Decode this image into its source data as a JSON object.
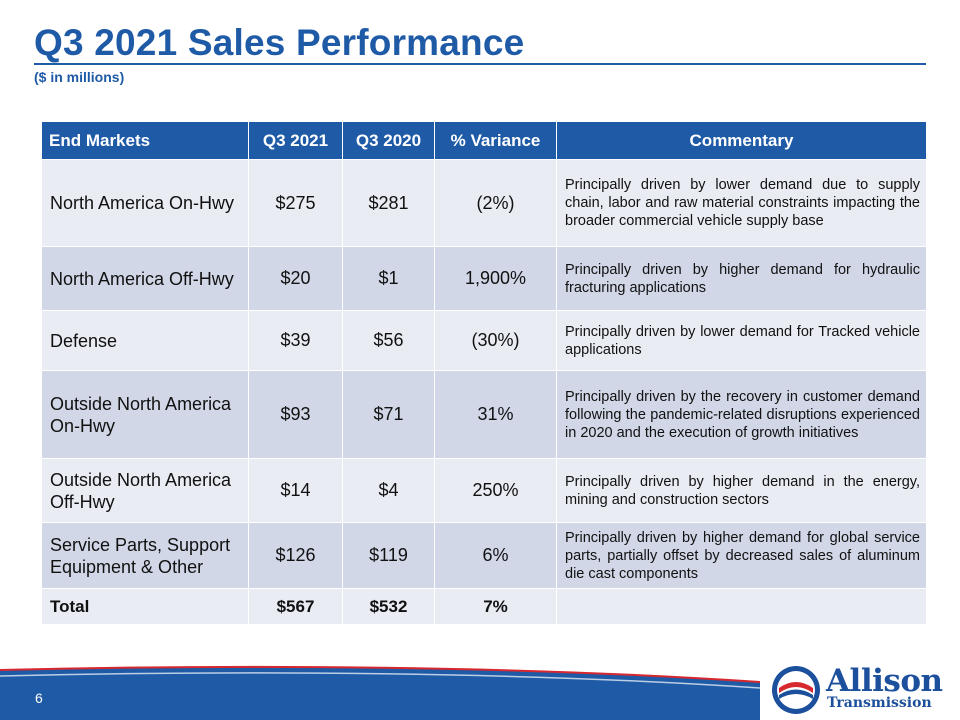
{
  "slide": {
    "title": "Q3 2021 Sales Performance",
    "subtitle": "($ in millions)",
    "page_number": "6"
  },
  "table": {
    "headers": [
      "End Markets",
      "Q3 2021",
      "Q3 2020",
      "% Variance",
      "Commentary"
    ],
    "rows": [
      {
        "market": "North America On-Hwy",
        "q3_2021": "$275",
        "q3_2020": "$281",
        "variance": "(2%)",
        "commentary": "Principally driven by lower demand due to supply chain, labor and raw material constraints impacting the broader commercial vehicle supply base"
      },
      {
        "market": "North America Off-Hwy",
        "q3_2021": "$20",
        "q3_2020": "$1",
        "variance": "1,900%",
        "commentary": "Principally driven by higher demand for hydraulic fracturing applications"
      },
      {
        "market": "Defense",
        "q3_2021": "$39",
        "q3_2020": "$56",
        "variance": "(30%)",
        "commentary": "Principally driven by lower demand for Tracked vehicle applications"
      },
      {
        "market": "Outside North America On-Hwy",
        "q3_2021": "$93",
        "q3_2020": "$71",
        "variance": "31%",
        "commentary": "Principally driven by the recovery in customer demand following the pandemic-related disruptions experienced in 2020 and the execution of growth initiatives"
      },
      {
        "market": "Outside North America Off-Hwy",
        "q3_2021": "$14",
        "q3_2020": "$4",
        "variance": "250%",
        "commentary": "Principally driven by higher demand in the energy, mining and construction sectors"
      },
      {
        "market": "Service Parts, Support Equipment & Other",
        "q3_2021": "$126",
        "q3_2020": "$119",
        "variance": "6%",
        "commentary": "Principally driven by higher demand for global service parts, partially offset by decreased sales of aluminum die cast components"
      }
    ],
    "total": {
      "market": "Total",
      "q3_2021": "$567",
      "q3_2020": "$532",
      "variance": "7%",
      "commentary": ""
    }
  },
  "logo": {
    "line1": "Allison",
    "line2": "Transmission",
    "colors": {
      "blue": "#1c4f9c",
      "red": "#d7282f"
    }
  },
  "colors": {
    "title_blue": "#1f5aa6",
    "header_bg": "#1f5aa6",
    "row_light": "#e9ecf3",
    "row_dark": "#d1d7e7",
    "footer_blue": "#1f5aa6"
  }
}
